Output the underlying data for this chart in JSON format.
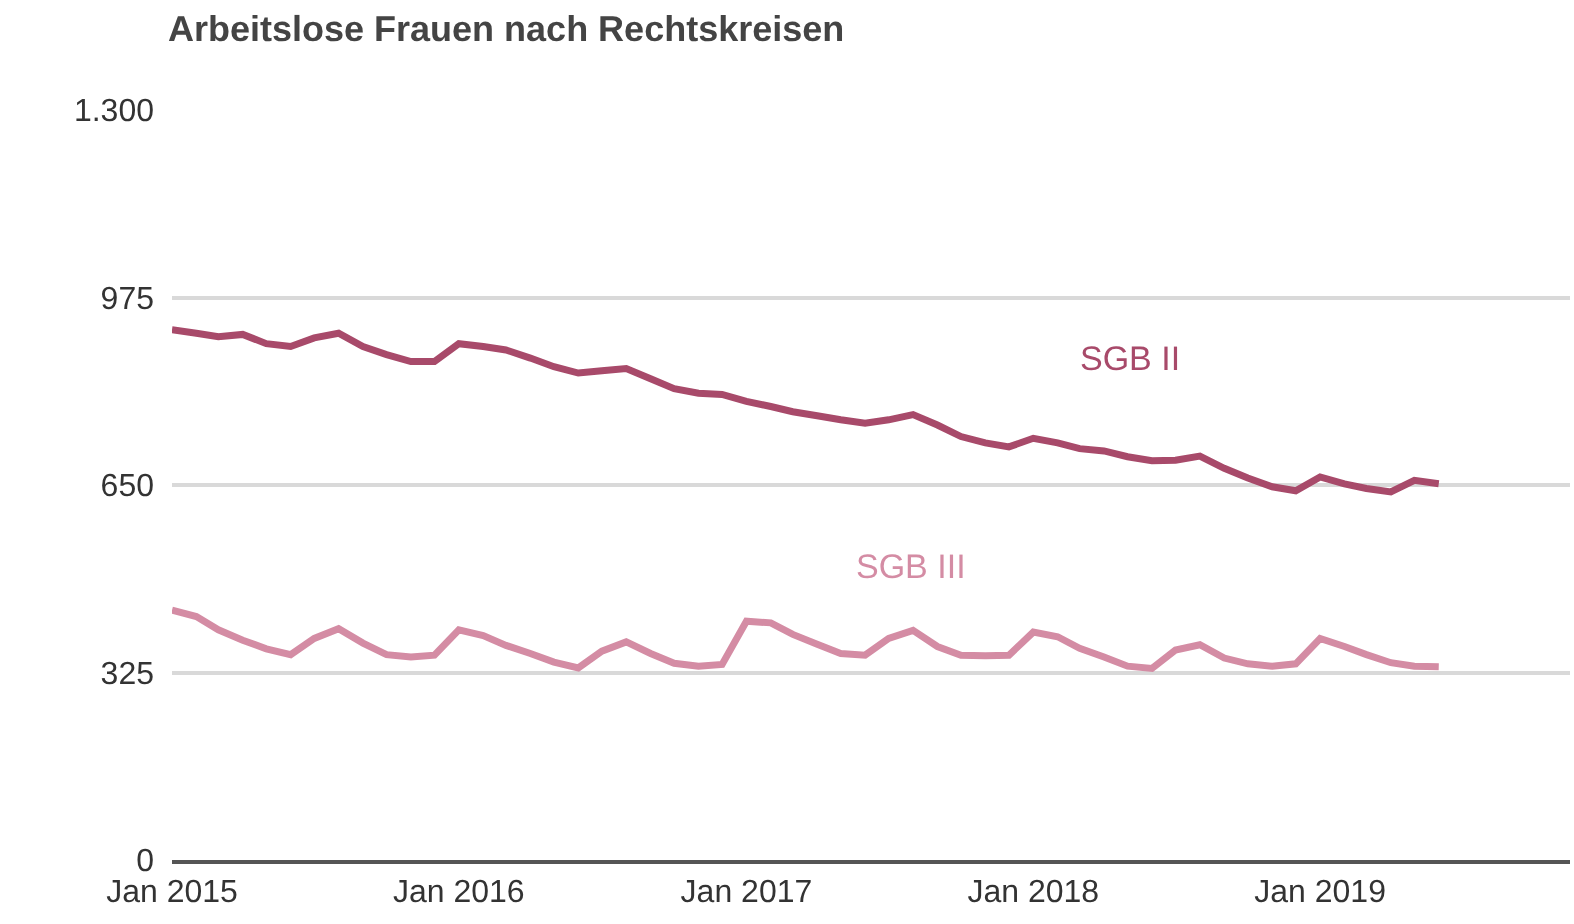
{
  "chart_data": {
    "type": "line",
    "title": "Arbeitslose Frauen nach Rechtskreisen",
    "x": [
      "2015-01",
      "2015-02",
      "2015-03",
      "2015-04",
      "2015-05",
      "2015-06",
      "2015-07",
      "2015-08",
      "2015-09",
      "2015-10",
      "2015-11",
      "2015-12",
      "2016-01",
      "2016-02",
      "2016-03",
      "2016-04",
      "2016-05",
      "2016-06",
      "2016-07",
      "2016-08",
      "2016-09",
      "2016-10",
      "2016-11",
      "2016-12",
      "2017-01",
      "2017-02",
      "2017-03",
      "2017-04",
      "2017-05",
      "2017-06",
      "2017-07",
      "2017-08",
      "2017-09",
      "2017-10",
      "2017-11",
      "2017-12",
      "2018-01",
      "2018-02",
      "2018-03",
      "2018-04",
      "2018-05",
      "2018-06",
      "2018-07",
      "2018-08",
      "2018-09",
      "2018-10",
      "2018-11",
      "2018-12",
      "2019-01",
      "2019-02",
      "2019-03",
      "2019-04",
      "2019-05",
      "2019-06"
    ],
    "series": [
      {
        "name": "SGB II",
        "color": "#a84a6a",
        "values": [
          919,
          913,
          907,
          911,
          895,
          890,
          905,
          913,
          890,
          876,
          864,
          864,
          895,
          890,
          884,
          870,
          855,
          844,
          848,
          852,
          834,
          817,
          809,
          807,
          795,
          786,
          777,
          770,
          763,
          757,
          763,
          772,
          754,
          734,
          723,
          716,
          731,
          723,
          713,
          709,
          699,
          692,
          693,
          700,
          679,
          662,
          647,
          640,
          664,
          652,
          644,
          638,
          658,
          652
        ]
      },
      {
        "name": "SGB III",
        "color": "#d48ca4",
        "values": [
          433,
          422,
          399,
          381,
          366,
          356,
          384,
          401,
          376,
          356,
          352,
          355,
          399,
          389,
          372,
          358,
          343,
          333,
          362,
          378,
          358,
          341,
          336,
          339,
          414,
          411,
          391,
          374,
          358,
          355,
          384,
          398,
          370,
          355,
          354,
          355,
          395,
          387,
          367,
          352,
          336,
          332,
          364,
          373,
          350,
          340,
          336,
          340,
          384,
          370,
          356,
          342,
          336,
          335
        ]
      }
    ],
    "xlim": [
      "2015-01-01",
      "2019-11-15"
    ],
    "xticks": [
      {
        "value": "2015-01",
        "label": "Jan 2015"
      },
      {
        "value": "2016-01",
        "label": "Jan 2016"
      },
      {
        "value": "2017-01",
        "label": "Jan 2017"
      },
      {
        "value": "2018-01",
        "label": "Jan 2018"
      },
      {
        "value": "2019-01",
        "label": "Jan 2019"
      }
    ],
    "ylim": [
      0,
      1300
    ],
    "yticks": [
      0,
      325,
      650,
      975,
      {
        "value": 1300,
        "label": "1.300"
      }
    ],
    "grid": "y",
    "legend": false,
    "marker": "none",
    "line_style": "solid"
  }
}
